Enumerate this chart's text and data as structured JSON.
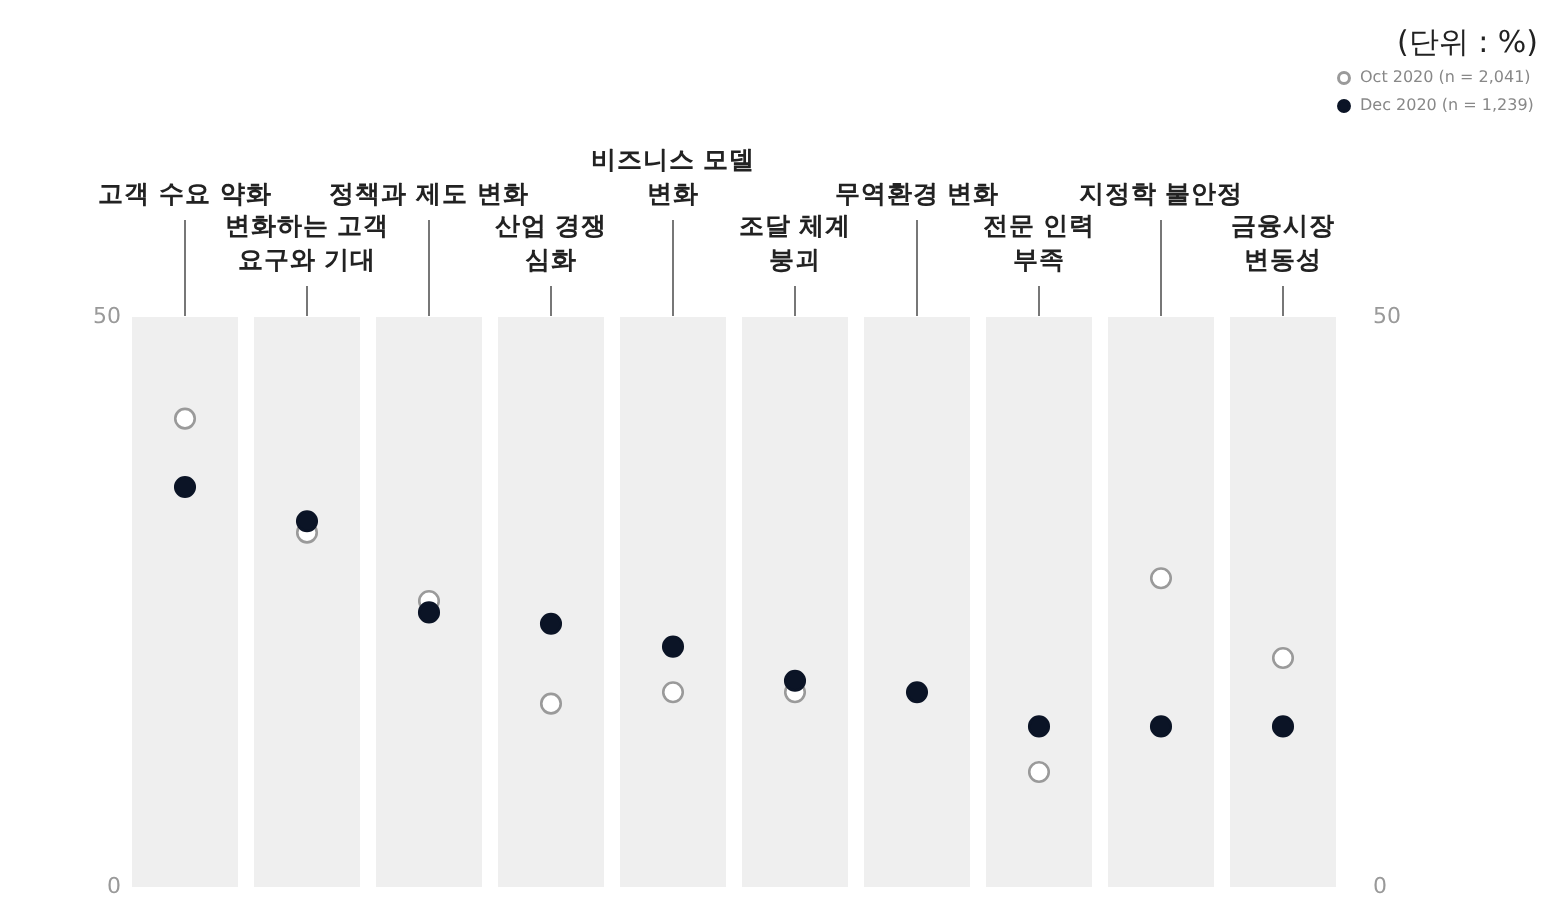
{
  "chart_data": {
    "type": "scatter",
    "categories": [
      "고객 수요 약화",
      "변화하는 고객\n요구와 기대",
      "정책과 제도 변화",
      "산업 경쟁\n심화",
      "비즈니스 모델\n변화",
      "조달 체계\n붕괴",
      "무역환경 변화",
      "전문 인력\n부족",
      "지정학 불안정",
      "금융시장\n변동성"
    ],
    "series": [
      {
        "name": "Oct 2020 (n = 2,041)",
        "color": "#9a9a9a",
        "values": [
          41,
          31,
          25,
          16,
          17,
          17,
          null,
          10,
          27,
          20
        ]
      },
      {
        "name": "Dec 2020 (n = 1,239)",
        "color": "#0b1426",
        "values": [
          35,
          32,
          24,
          23,
          21,
          18,
          17,
          14,
          14,
          14
        ]
      }
    ],
    "ylim": [
      0,
      50
    ],
    "yticks": [
      0,
      50
    ],
    "y2lim": [
      0,
      50
    ],
    "y2ticks": [
      0,
      50
    ],
    "marker": "circle",
    "grid": "x",
    "legend": "top right",
    "annotations": [
      "(단위 : %)"
    ]
  }
}
